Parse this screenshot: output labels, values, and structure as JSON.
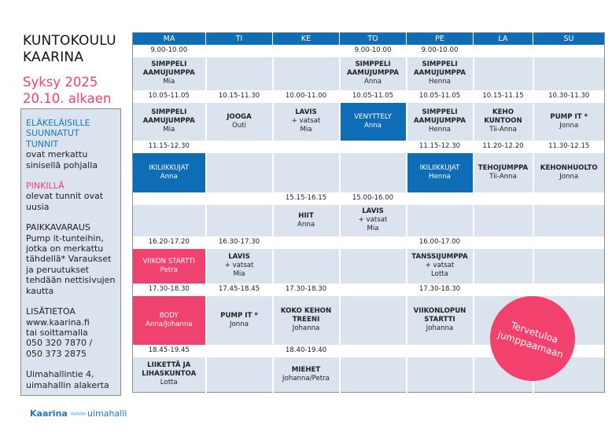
{
  "sidebar": {
    "title_lines": [
      "KUNTOKOULU",
      "KAARINA"
    ],
    "season_lines": [
      "Syksy 2025",
      "20.10. alkaen"
    ],
    "legend_blue_heading": [
      "ELÄKELÄISILLE",
      "SUUNNATUT",
      "TUNNIT"
    ],
    "legend_blue_text": "ovat merkattu sinisellä pohjalla",
    "legend_pink_heading": "PINKILLÄ",
    "legend_pink_text": "olevat tunnit ovat uusia",
    "booking_heading": "PAIKKAVARAUS",
    "booking_text": "Pump it-tunteihin, jotka on merkattu tähdellä* Varaukset ja peruutukset tehdään nettisivujen kautta",
    "contact_heading": "LISÄTIETOA",
    "contact_lines": [
      "www.kaarina.fi",
      "tai soittamalla",
      "050 320 7870 /",
      "050 373 2875"
    ],
    "address": "Uimahallintie 4, uimahallin alakerta",
    "logo": {
      "brand": "Kaarina",
      "suffix": "uimahalli"
    }
  },
  "colors": {
    "blue": "#0e6db4",
    "pink": "#f0426e",
    "cell": "#dbe3ee"
  },
  "schedule": {
    "days": [
      "MA",
      "TI",
      "KE",
      "TO",
      "PE",
      "LA",
      "SU"
    ],
    "blocks": [
      {
        "times": [
          "9.00-10.00",
          "",
          "",
          "9.00-10.00",
          "9.00-10.00",
          "",
          ""
        ],
        "classes": [
          {
            "title": "SIMPPELI AAMUJUMPPA",
            "teacher": "Mia"
          },
          {},
          {},
          {
            "title": "SIMPPELI AAMUJUMPPA",
            "teacher": "Anna"
          },
          {
            "title": "SIMPPELI AAMUJUMPPA",
            "teacher": "Henna"
          },
          {},
          {}
        ]
      },
      {
        "times": [
          "10.05-11.05",
          "10.15-11.30",
          "10.00-11.00",
          "10.05-11.05",
          "10.05-11.05",
          "10.15-11.15",
          "10.30-11.30"
        ],
        "classes": [
          {
            "title": "SIMPPELI AAMUJUMPPA",
            "teacher": "Mia"
          },
          {
            "title": "JOOGA",
            "teacher": "Outi"
          },
          {
            "title": "LAVIS",
            "extra": "+ vatsat",
            "teacher": "Mia"
          },
          {
            "title": "VENYTTELY",
            "teacher": "Anna",
            "style": "blue"
          },
          {
            "title": "SIMPPELI AAMUJUMPPA",
            "teacher": "Henna"
          },
          {
            "title": "KEHO KUNTOON",
            "teacher": "Tii-Anna"
          },
          {
            "title": "PUMP IT *",
            "teacher": "Jonna"
          }
        ]
      },
      {
        "times": [
          "11.15-12.30",
          "",
          "",
          "",
          "11.15-12.30",
          "11.20-12.20",
          "11.30-12.15"
        ],
        "classes": [
          {
            "title": "IKILIIKKUJAT",
            "teacher": "Anna",
            "style": "blue"
          },
          {},
          {},
          {},
          {
            "title": "IKILIIKKUJAT",
            "teacher": "Henna",
            "style": "blue"
          },
          {
            "title": "TEHOJUMPPA",
            "teacher": "Tii-Anna"
          },
          {
            "title": "KEHONHUOLTO",
            "teacher": "Jonna"
          }
        ]
      },
      {
        "times": [
          "",
          "",
          "15.15-16.15",
          "15.00-16.00",
          "",
          "",
          ""
        ],
        "classes": [
          {},
          {},
          {
            "title": "HIIT",
            "teacher": "Anna"
          },
          {
            "title": "LAVIS",
            "extra": "+ vatsat",
            "teacher": "Mia"
          },
          {},
          {},
          {}
        ]
      },
      {
        "times": [
          "16.20-17.20",
          "16.30-17.30",
          "",
          "",
          "16.00-17.00",
          "",
          ""
        ],
        "classes": [
          {
            "title": "VIIKON STARTTI",
            "teacher": "Petra",
            "style": "pink"
          },
          {
            "title": "LAVIS",
            "extra": "+ vatsat",
            "teacher": "Mia"
          },
          {},
          {},
          {
            "title": "TANSSIJUMPPA",
            "extra": "+ vatsat",
            "teacher": "Lotta"
          },
          {},
          {}
        ]
      },
      {
        "times": [
          "17.30-18.30",
          "17.45-18.45",
          "17.30-18.30",
          "",
          "17.30-18.30",
          "",
          ""
        ],
        "classes": [
          {
            "title": "BODY",
            "teacher": "Anna/Johanna",
            "style": "pink"
          },
          {
            "title": "PUMP IT *",
            "teacher": "Jonna"
          },
          {
            "title": "KOKO KEHON TREENI",
            "teacher": "Johanna"
          },
          {},
          {
            "title": "VIIKONLOPUN STARTTI",
            "teacher": "Johanna"
          },
          {},
          {}
        ]
      },
      {
        "times": [
          "18.45-19.45",
          "",
          "18.40-19.40",
          "",
          "",
          "",
          ""
        ],
        "classes": [
          {
            "title": "LIIKETTÄ JA LIHASKUNTOA",
            "teacher": "Lotta"
          },
          {},
          {
            "title": "MIEHET",
            "teacher": "Johanna/Petra"
          },
          {},
          {},
          {},
          {}
        ]
      }
    ]
  },
  "welcome_badge": [
    "Tervetuloa",
    "jumppaamaan"
  ]
}
